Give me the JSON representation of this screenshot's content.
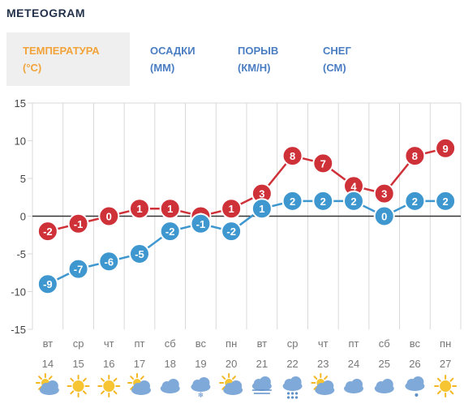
{
  "header": {
    "title": "METEOGRAM"
  },
  "tabs": [
    {
      "label_line1": "ТЕМПЕРАТУРА",
      "label_line2": "(°C)",
      "active": true
    },
    {
      "label_line1": "ОСАДКИ",
      "label_line2": "(ММ)",
      "active": false
    },
    {
      "label_line1": "ПОРЫВ",
      "label_line2": "(КМ/Н)",
      "active": false
    },
    {
      "label_line1": "СНЕГ",
      "label_line2": "(СМ)",
      "active": false
    }
  ],
  "colors": {
    "accent_tab": "#f2a33a",
    "tab_text": "#4a7dc2",
    "max_series": "#cf3139",
    "min_series": "#3f97cf",
    "grid": "#d9d9d9",
    "zero_line": "#333333"
  },
  "chart_data": {
    "type": "line",
    "ylim": [
      -15,
      15
    ],
    "yticks": [
      15,
      10,
      5,
      0,
      -5,
      -10,
      -15
    ],
    "categories": [
      {
        "day": "вт",
        "date": "14",
        "icon": "partly-cloudy-sun-icon"
      },
      {
        "day": "ср",
        "date": "15",
        "icon": "sun-icon"
      },
      {
        "day": "чт",
        "date": "16",
        "icon": "sun-icon"
      },
      {
        "day": "пт",
        "date": "17",
        "icon": "partly-cloudy-sun-icon"
      },
      {
        "day": "сб",
        "date": "18",
        "icon": "cloud-icon"
      },
      {
        "day": "вс",
        "date": "19",
        "icon": "cloud-snow-icon"
      },
      {
        "day": "пн",
        "date": "20",
        "icon": "partly-cloudy-sun-icon"
      },
      {
        "day": "вт",
        "date": "21",
        "icon": "cloud-fog-icon"
      },
      {
        "day": "ср",
        "date": "22",
        "icon": "cloud-rain-icon"
      },
      {
        "day": "чт",
        "date": "23",
        "icon": "partly-cloudy-sun-icon"
      },
      {
        "day": "пт",
        "date": "24",
        "icon": "cloud-icon"
      },
      {
        "day": "сб",
        "date": "25",
        "icon": "cloud-icon"
      },
      {
        "day": "вс",
        "date": "26",
        "icon": "cloud-drizzle-icon"
      },
      {
        "day": "пн",
        "date": "27",
        "icon": "sun-icon"
      }
    ],
    "series": [
      {
        "values": [
          -2,
          -1,
          0,
          1,
          1,
          0,
          1,
          3,
          8,
          7,
          4,
          3,
          8,
          9
        ],
        "color": "#cf3139"
      },
      {
        "values": [
          -9,
          -7,
          -6,
          -5,
          -2,
          -1,
          -2,
          1,
          2,
          2,
          2,
          0,
          2,
          2
        ],
        "color": "#3f97cf"
      }
    ]
  }
}
